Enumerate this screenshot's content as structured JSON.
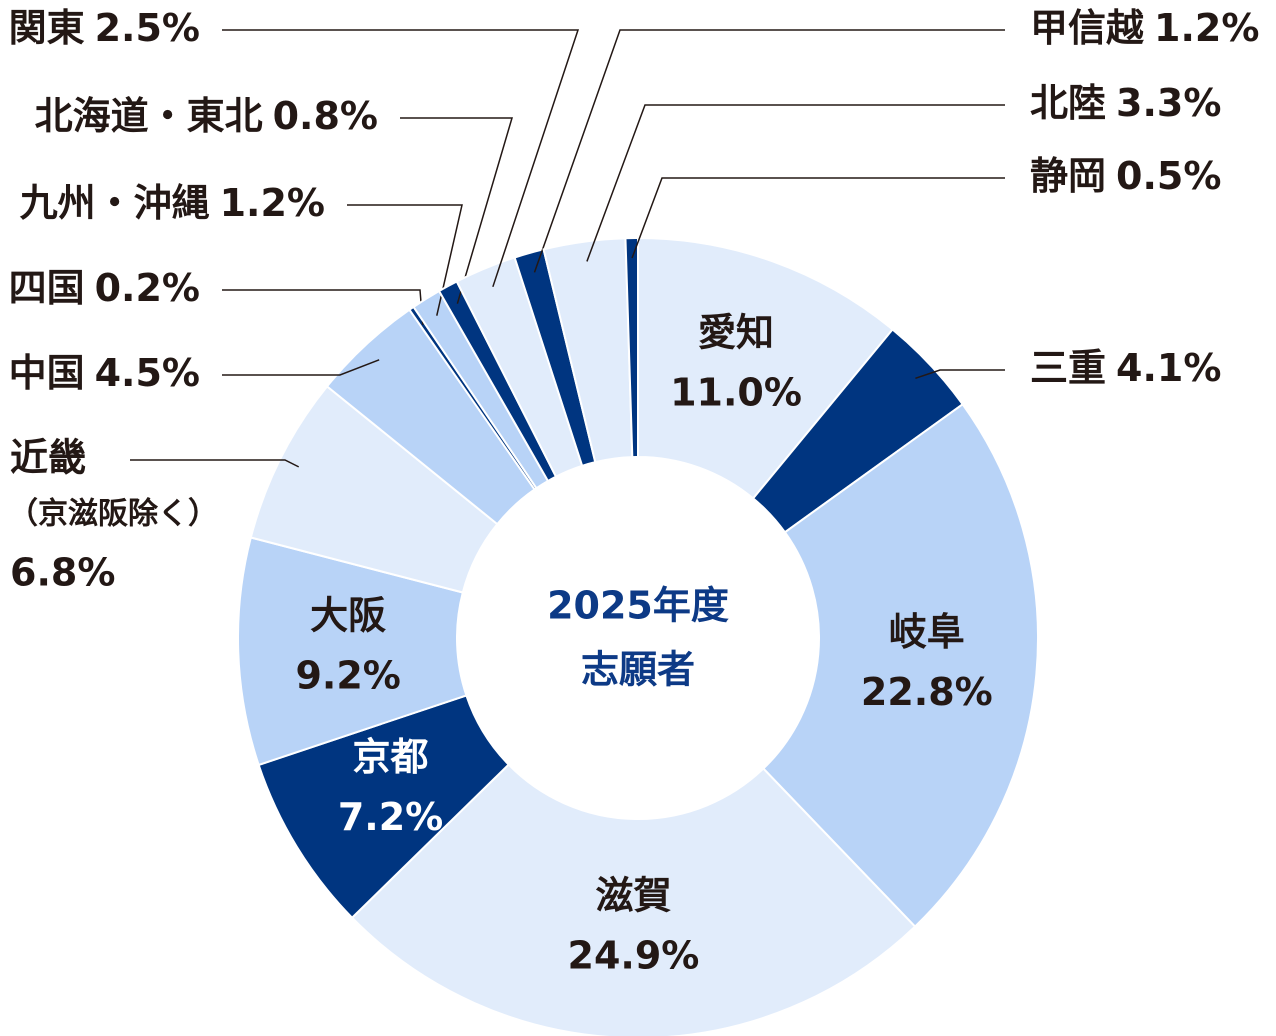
{
  "chart_data": {
    "type": "donut",
    "title": "2025年度",
    "subtitle": "志願者",
    "categories": [
      "愛知",
      "三重",
      "岐阜",
      "滋賀",
      "京都",
      "大阪",
      "近畿",
      "中国",
      "四国",
      "九州・沖縄",
      "北海道・東北",
      "関東",
      "甲信越",
      "北陸",
      "静岡"
    ],
    "values": [
      11.0,
      4.1,
      22.8,
      24.9,
      7.2,
      9.2,
      6.8,
      4.5,
      0.2,
      1.2,
      0.8,
      2.5,
      1.2,
      3.3,
      0.5
    ],
    "value_labels": [
      "11.0%",
      "4.1%",
      "22.8%",
      "24.9%",
      "7.2%",
      "9.2%",
      "6.8%",
      "4.5%",
      "0.2%",
      "1.2%",
      "0.8%",
      "2.5%",
      "1.2%",
      "3.3%",
      "0.5%"
    ],
    "colors": [
      "#e1ecfb",
      "#003580",
      "#b8d3f7",
      "#e1ecfb",
      "#003580",
      "#b8d3f7",
      "#e1ecfb",
      "#b8d3f7",
      "#003580",
      "#b8d3f7",
      "#003580",
      "#e1ecfb",
      "#003580",
      "#e1ecfb",
      "#003580"
    ],
    "annotation": "（京滋阪除く）"
  }
}
